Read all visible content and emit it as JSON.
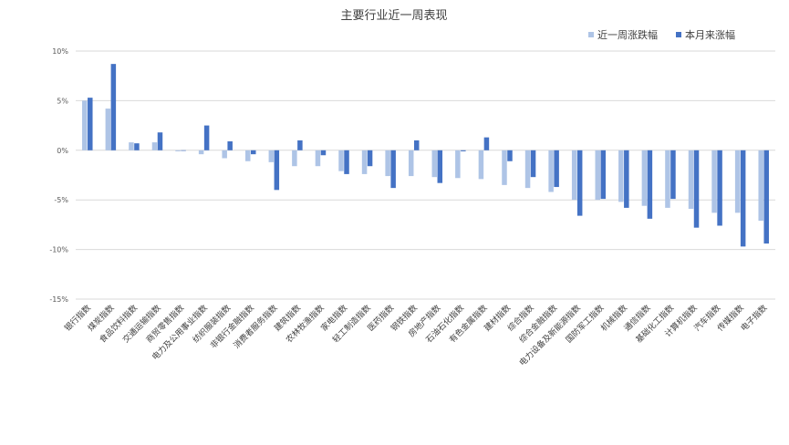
{
  "chart_data": {
    "type": "bar",
    "title": "主要行业近一周表现",
    "xlabel": "",
    "ylabel": "",
    "ylim": [
      -15,
      10
    ],
    "yticks": [
      10,
      5,
      0,
      -5,
      -10,
      -15
    ],
    "ytick_labels": [
      "10%",
      "5%",
      "0%",
      "-5%",
      "-10%",
      "-15%"
    ],
    "grid": true,
    "legend_position": "top-right",
    "categories": [
      "银行指数",
      "煤炭指数",
      "食品饮料指数",
      "交通运输指数",
      "商贸零售指数",
      "电力及公用事业指数",
      "纺织服装指数",
      "非银行金融指数",
      "消费者服务指数",
      "建筑指数",
      "农林牧渔指数",
      "家电指数",
      "轻工制造指数",
      "医药指数",
      "钢铁指数",
      "房地产指数",
      "石油石化指数",
      "有色金属指数",
      "建材指数",
      "综合指数",
      "综合金融指数",
      "电力设备及新能源指数",
      "国防军工指数",
      "机械指数",
      "通信指数",
      "基础化工指数",
      "计算机指数",
      "汽车指数",
      "传媒指数",
      "电子指数"
    ],
    "series": [
      {
        "name": "近一周涨跌幅",
        "color": "#aec4e6",
        "values": [
          5.0,
          4.2,
          0.8,
          0.8,
          -0.1,
          -0.4,
          -0.8,
          -1.1,
          -1.2,
          -1.6,
          -1.6,
          -2.1,
          -2.4,
          -2.6,
          -2.6,
          -2.7,
          -2.8,
          -2.9,
          -3.5,
          -3.8,
          -4.2,
          -5.0,
          -5.0,
          -5.2,
          -5.6,
          -5.8,
          -5.9,
          -6.3,
          -6.3,
          -7.1
        ]
      },
      {
        "name": "本月来涨幅",
        "color": "#4472c4",
        "values": [
          5.3,
          8.7,
          0.7,
          1.8,
          0.0,
          2.5,
          0.9,
          -0.4,
          -4.0,
          1.0,
          -0.5,
          -2.4,
          -1.6,
          -3.8,
          1.0,
          -3.3,
          -0.1,
          1.3,
          -1.1,
          -2.7,
          -3.7,
          -6.6,
          -4.9,
          -5.8,
          -6.9,
          -4.9,
          -7.8,
          -7.6,
          -9.7,
          -9.4
        ]
      }
    ]
  }
}
